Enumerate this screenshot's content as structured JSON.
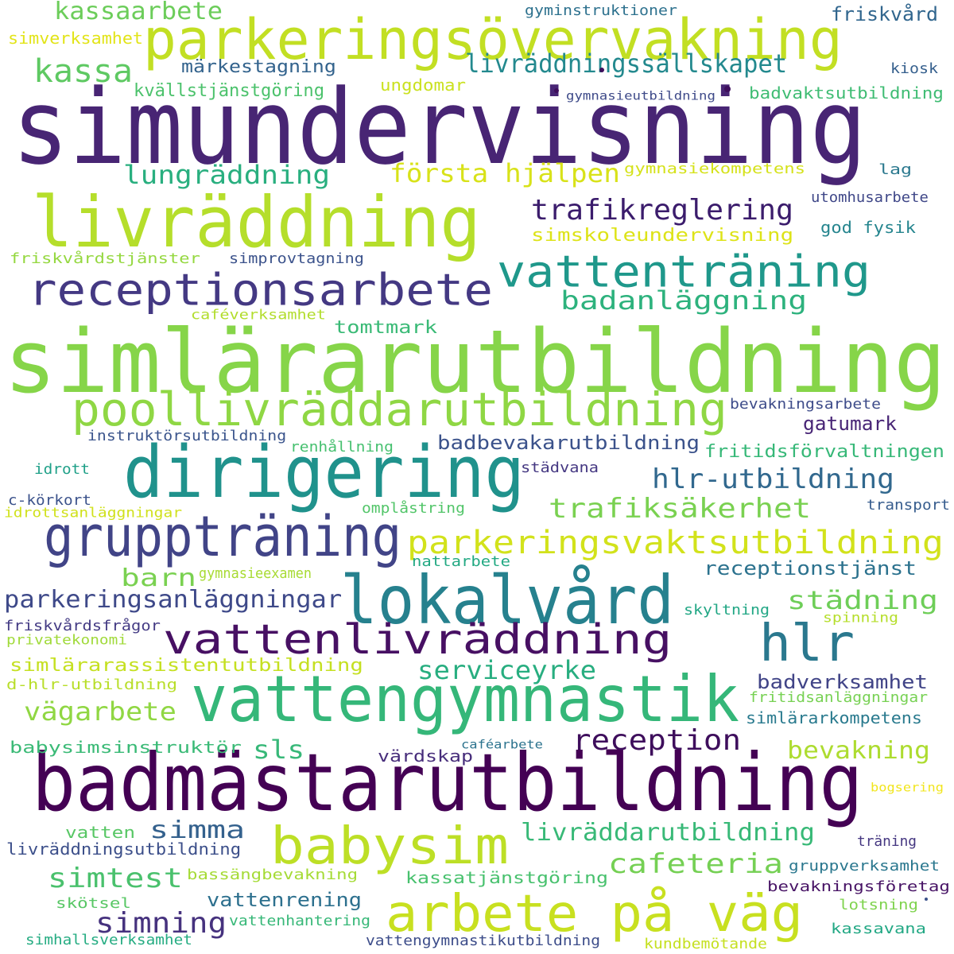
{
  "words": [
    {
      "text": "simundervisning",
      "color": "#482574"
    },
    {
      "text": "simlärarutbildning",
      "color": "#86d549"
    },
    {
      "text": "badmästarutbildning",
      "color": "#440154"
    },
    {
      "text": "livräddning",
      "color": "#b5de2b"
    },
    {
      "text": "parkeringsövervakning",
      "color": "#c2df23"
    },
    {
      "text": "dirigering",
      "color": "#20928c"
    },
    {
      "text": "vattengymnastik",
      "color": "#35b779"
    },
    {
      "text": "poollivräddarutbildning",
      "color": "#8fd744"
    },
    {
      "text": "lokalvård",
      "color": "#26818e"
    },
    {
      "text": "receptionsarbete",
      "color": "#443983"
    },
    {
      "text": "gruppträning",
      "color": "#414487"
    },
    {
      "text": "vattenlivräddning",
      "color": "#471063"
    },
    {
      "text": "hlr",
      "color": "#2a788e"
    },
    {
      "text": "babysim",
      "color": "#bddf26"
    },
    {
      "text": "arbete på väg",
      "color": "#c8e020"
    },
    {
      "text": "vattenträning",
      "color": "#1f988b"
    },
    {
      "text": "parkeringsvaktsutbildning",
      "color": "#d2e21b"
    },
    {
      "text": "livräddningssällskapet",
      "color": "#23898e"
    },
    {
      "text": "kassa",
      "color": "#5ec962"
    },
    {
      "text": "lungräddning",
      "color": "#29af7f"
    },
    {
      "text": "första hjälpen",
      "color": "#d8e219"
    },
    {
      "text": "trafikreglering",
      "color": "#3b1c6c"
    },
    {
      "text": "badanläggning",
      "color": "#2db27d"
    },
    {
      "text": "hlr-utbildning",
      "color": "#31688e"
    },
    {
      "text": "trafiksäkerhet",
      "color": "#7ad151"
    },
    {
      "text": "kassaarbete",
      "color": "#6ccd5a"
    },
    {
      "text": "reception",
      "color": "#3e0e5c"
    },
    {
      "text": "städning",
      "color": "#6ece58"
    },
    {
      "text": "serviceyrke",
      "color": "#28ae80"
    },
    {
      "text": "parkeringsanläggningar",
      "color": "#3e4989"
    },
    {
      "text": "badbevakarutbildning",
      "color": "#3b528b"
    },
    {
      "text": "barn",
      "color": "#7ad151"
    },
    {
      "text": "simtest",
      "color": "#4ac16d"
    },
    {
      "text": "simning",
      "color": "#46327e"
    },
    {
      "text": "cafeteria",
      "color": "#75d054"
    },
    {
      "text": "vägarbete",
      "color": "#90d743"
    },
    {
      "text": "livräddarutbildning",
      "color": "#38b977"
    },
    {
      "text": "bevakning",
      "color": "#addc30"
    },
    {
      "text": "simma",
      "color": "#34618d"
    },
    {
      "text": "receptionstjänst",
      "color": "#2c728e"
    },
    {
      "text": "badverksamhet",
      "color": "#414487"
    },
    {
      "text": "sls",
      "color": "#37b878"
    },
    {
      "text": "vattenrening",
      "color": "#2d708e"
    },
    {
      "text": "gatumark",
      "color": "#482576"
    },
    {
      "text": "tomtmark",
      "color": "#3aba76"
    },
    {
      "text": "friskvård",
      "color": "#31668e"
    },
    {
      "text": "märkestagning",
      "color": "#33638d"
    },
    {
      "text": "simskoleundervisning",
      "color": "#dde318"
    },
    {
      "text": "gymnasiekompetens",
      "color": "#d5e21a"
    },
    {
      "text": "kvällstjänstgöring",
      "color": "#4cc26c"
    },
    {
      "text": "badvaktsutbildning",
      "color": "#3fbc73"
    },
    {
      "text": "simverksamhet",
      "color": "#e2e418"
    },
    {
      "text": "ungdomar",
      "color": "#cae11f"
    },
    {
      "text": "friskvårdstjänster",
      "color": "#95d840"
    },
    {
      "text": "simprovtagning",
      "color": "#3b528b"
    },
    {
      "text": "god fysik",
      "color": "#25858e"
    },
    {
      "text": "lag",
      "color": "#2a788e"
    },
    {
      "text": "utomhusarbete",
      "color": "#3f4788"
    },
    {
      "text": "kiosk",
      "color": "#355f8d"
    },
    {
      "text": "gyminstruktioner",
      "color": "#2d718e"
    },
    {
      "text": "gymnasieutbildning",
      "color": "#3e4a89"
    },
    {
      "text": "caféverksamhet",
      "color": "#b2dd2d"
    },
    {
      "text": "instruktörsutbildning",
      "color": "#3a548c"
    },
    {
      "text": "renhållning",
      "color": "#46c06f"
    },
    {
      "text": "bevakningsarbete",
      "color": "#3e4c8a"
    },
    {
      "text": "fritidsförvaltningen",
      "color": "#37b878"
    },
    {
      "text": "städvana",
      "color": "#453882"
    },
    {
      "text": "idrott",
      "color": "#1fa088"
    },
    {
      "text": "c-körkort",
      "color": "#3b528b"
    },
    {
      "text": "idrottsanläggningar",
      "color": "#d0e11c"
    },
    {
      "text": "omplåstring",
      "color": "#52c569"
    },
    {
      "text": "transport",
      "color": "#365c8d"
    },
    {
      "text": "gymnasieexamen",
      "color": "#a8db34"
    },
    {
      "text": "nattarbete",
      "color": "#23a983"
    },
    {
      "text": "friskvårdsfrågor",
      "color": "#443b84"
    },
    {
      "text": "privatekonomi",
      "color": "#a0da39"
    },
    {
      "text": "skyltning",
      "color": "#22a785"
    },
    {
      "text": "spinning",
      "color": "#b5de2b"
    },
    {
      "text": "simlärarassistentutbildning",
      "color": "#c5e021"
    },
    {
      "text": "d-hlr-utbildning",
      "color": "#b8de29"
    },
    {
      "text": "fritidsanläggningar",
      "color": "#77d153"
    },
    {
      "text": "simlärarkompetens",
      "color": "#297a8e"
    },
    {
      "text": "babysimsinstruktör",
      "color": "#3aba76"
    },
    {
      "text": "caféarbete",
      "color": "#2c738e"
    },
    {
      "text": "värdskap",
      "color": "#472d7b"
    },
    {
      "text": "bogsering",
      "color": "#f1e51d"
    },
    {
      "text": "vatten",
      "color": "#58c765"
    },
    {
      "text": "livräddningsutbildning",
      "color": "#3c4f8a"
    },
    {
      "text": "träning",
      "color": "#453781"
    },
    {
      "text": "gruppverksamhet",
      "color": "#2a778e"
    },
    {
      "text": "bassängbevakning",
      "color": "#a5db36"
    },
    {
      "text": "kassatjänstgöring",
      "color": "#48c16e"
    },
    {
      "text": "bevakningsföretag",
      "color": "#471365"
    },
    {
      "text": "skötsel",
      "color": "#58c765"
    },
    {
      "text": "vattenhantering",
      "color": "#37b878"
    },
    {
      "text": "lotsning",
      "color": "#7fd34e"
    },
    {
      "text": "simhallsverksamhet",
      "color": "#25ac82"
    },
    {
      "text": "vattengymnastikutbildning",
      "color": "#3d4d8a"
    },
    {
      "text": "kundbemötande",
      "color": "#c5e021"
    },
    {
      "text": "kassavana",
      "color": "#22a884"
    }
  ],
  "dots": [
    {
      "color": "#3e0e5c"
    },
    {
      "color": "#3e0e5c"
    },
    {
      "color": "#3e0e5c"
    },
    {
      "color": "#3b528b"
    }
  ]
}
